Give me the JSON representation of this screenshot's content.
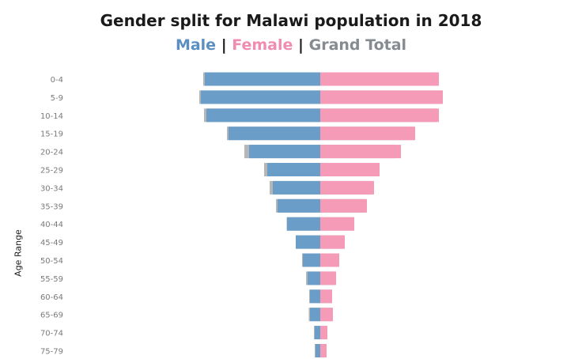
{
  "chart_data": {
    "type": "bar",
    "title": "Gender split for Malawi population in 2018",
    "legend": [
      {
        "label": "Male",
        "color": "#6a9ec8"
      },
      {
        "label": "Female",
        "color": "#f59ab7"
      },
      {
        "label": "Grand Total",
        "color": "#b4b6b8"
      }
    ],
    "separator": "|",
    "ylabel": "Age Range",
    "categories": [
      "0-4",
      "5-9",
      "10-14",
      "15-19",
      "20-24",
      "25-29",
      "30-34",
      "35-39",
      "40-44",
      "45-49",
      "50-54",
      "55-59",
      "60-64",
      "65-69",
      "70-74",
      "75-79"
    ],
    "series": [
      {
        "name": "Male",
        "values": [
          146,
          151,
          144,
          116,
          90,
          67,
          60,
          54,
          42,
          31,
          22,
          16,
          13,
          13,
          7,
          6
        ]
      },
      {
        "name": "Female",
        "values": [
          150,
          155,
          150,
          120,
          102,
          75,
          68,
          59,
          43,
          31,
          24,
          20,
          15,
          16,
          9,
          8
        ]
      },
      {
        "name": "Grand Total",
        "values": [
          296,
          306,
          294,
          236,
          192,
          142,
          128,
          112,
          85,
          62,
          46,
          36,
          28,
          29,
          16,
          14
        ]
      }
    ]
  }
}
